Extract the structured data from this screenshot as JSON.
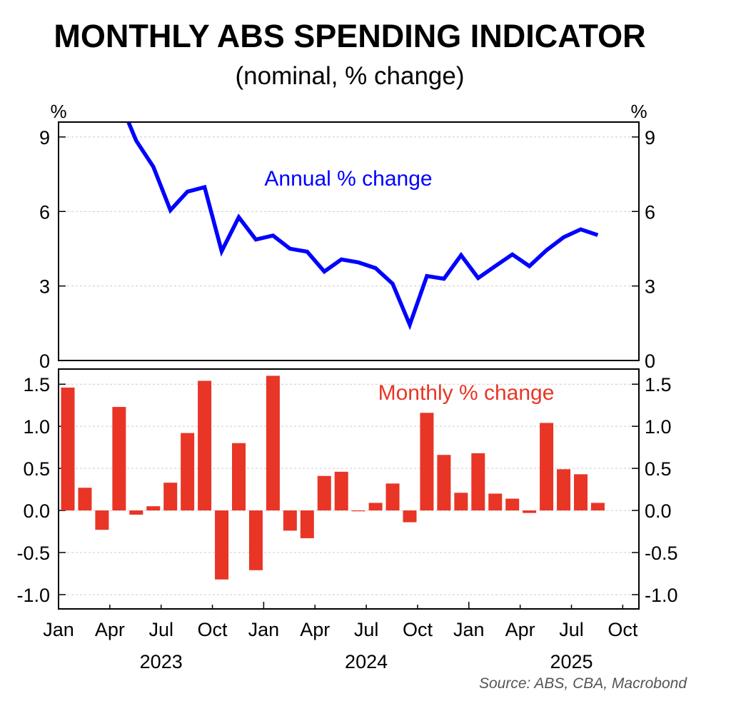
{
  "chart_data": [
    {
      "type": "line",
      "title": "MONTHLY ABS SPENDING INDICATOR",
      "subtitle": "(nominal, % change)",
      "unit_left": "%",
      "unit_right": "%",
      "series_label": "Annual % change",
      "color": "#0000ff",
      "ylim": [
        0,
        9.6
      ],
      "yticks": [
        0,
        3,
        6,
        9
      ],
      "start_month_index": 3,
      "x": [
        "Apr 2023",
        "May 2023",
        "Jun 2023",
        "Jul 2023",
        "Aug 2023",
        "Sep 2023",
        "Oct 2023",
        "Nov 2023",
        "Dec 2023",
        "Jan 2024",
        "Feb 2024",
        "Mar 2024",
        "Apr 2024",
        "May 2024",
        "Jun 2024",
        "Jul 2024",
        "Aug 2024",
        "Sep 2024",
        "Oct 2024",
        "Nov 2024",
        "Dec 2024",
        "Jan 2025",
        "Feb 2025",
        "Mar 2025",
        "Apr 2025",
        "May 2025",
        "Jun 2025",
        "Jul 2025",
        "Aug 2025"
      ],
      "values": [
        10.5,
        8.85,
        7.8,
        6.05,
        6.8,
        6.98,
        4.4,
        5.77,
        4.87,
        5.03,
        4.5,
        4.38,
        3.58,
        4.07,
        3.95,
        3.72,
        3.09,
        1.44,
        3.4,
        3.29,
        4.24,
        3.32,
        3.8,
        4.27,
        3.8,
        4.44,
        4.96,
        5.28,
        5.05
      ],
      "grid": true
    },
    {
      "type": "bar",
      "series_label": "Monthly % change",
      "color": "#e83526",
      "ylim": [
        -1.17,
        1.68
      ],
      "yticks": [
        -1.0,
        -0.5,
        0.0,
        0.5,
        1.0,
        1.5
      ],
      "ytick_labels": [
        "-1.0",
        "-0.5",
        "0.0",
        "0.5",
        "1.0",
        "1.5"
      ],
      "categories": [
        "Jan 2023",
        "Feb 2023",
        "Mar 2023",
        "Apr 2023",
        "May 2023",
        "Jun 2023",
        "Jul 2023",
        "Aug 2023",
        "Sep 2023",
        "Oct 2023",
        "Nov 2023",
        "Dec 2023",
        "Jan 2024",
        "Feb 2024",
        "Mar 2024",
        "Apr 2024",
        "May 2024",
        "Jun 2024",
        "Jul 2024",
        "Aug 2024",
        "Sep 2024",
        "Oct 2024",
        "Nov 2024",
        "Dec 2024",
        "Jan 2025",
        "Feb 2025",
        "Mar 2025",
        "Apr 2025",
        "May 2025",
        "Jun 2025",
        "Jul 2025",
        "Aug 2025"
      ],
      "values": [
        1.46,
        0.27,
        -0.23,
        1.23,
        -0.05,
        0.05,
        0.33,
        0.92,
        1.54,
        -0.82,
        0.8,
        -0.71,
        1.6,
        -0.24,
        -0.33,
        0.41,
        0.46,
        -0.01,
        0.09,
        0.32,
        -0.14,
        1.16,
        0.66,
        0.21,
        0.68,
        0.2,
        0.14,
        -0.03,
        1.04,
        0.49,
        0.43,
        0.09
      ],
      "grid": true
    }
  ],
  "x_axis": {
    "month_labels": [
      "Jan",
      "Apr",
      "Jul",
      "Oct",
      "Jan",
      "Apr",
      "Jul",
      "Oct",
      "Jan",
      "Apr",
      "Jul",
      "Oct"
    ],
    "year_labels": [
      "2023",
      "2024",
      "2025"
    ]
  },
  "source": "Source: ABS, CBA, Macrobond"
}
